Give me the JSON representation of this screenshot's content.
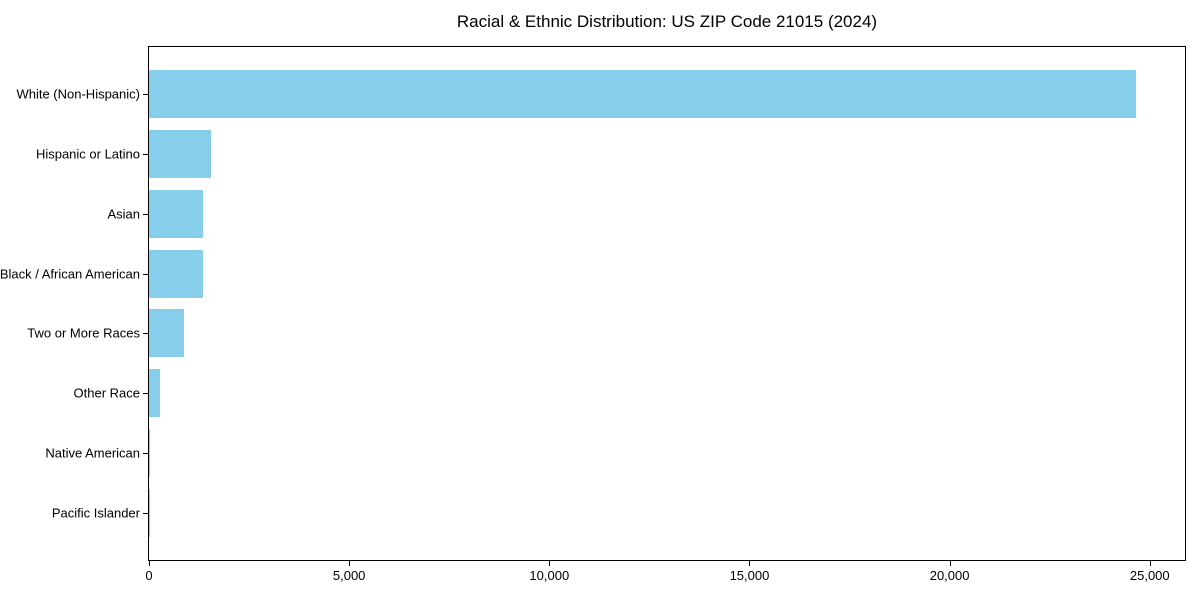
{
  "figure": {
    "background": "#FFFFFF"
  },
  "chart_data": {
    "type": "bar",
    "orientation": "horizontal",
    "title": "Racial & Ethnic Distribution: US ZIP Code 21015 (2024)",
    "categories": [
      "White (Non-Hispanic)",
      "Hispanic or Latino",
      "Asian",
      "Black / African American",
      "Two or More Races",
      "Other Race",
      "Native American",
      "Pacific Islander"
    ],
    "values": [
      24650,
      1540,
      1360,
      1340,
      880,
      280,
      20,
      5
    ],
    "xlabel": "",
    "ylabel": "",
    "xlim": [
      0,
      25880
    ],
    "xticks": [
      0,
      5000,
      10000,
      15000,
      20000,
      25000
    ],
    "xtick_labels": [
      "0",
      "5,000",
      "10,000",
      "15,000",
      "20,000",
      "25,000"
    ],
    "grid": false,
    "legend": null,
    "bar_color": "#87CEEB",
    "axis_color": "#000000",
    "text_color": "#000000"
  }
}
